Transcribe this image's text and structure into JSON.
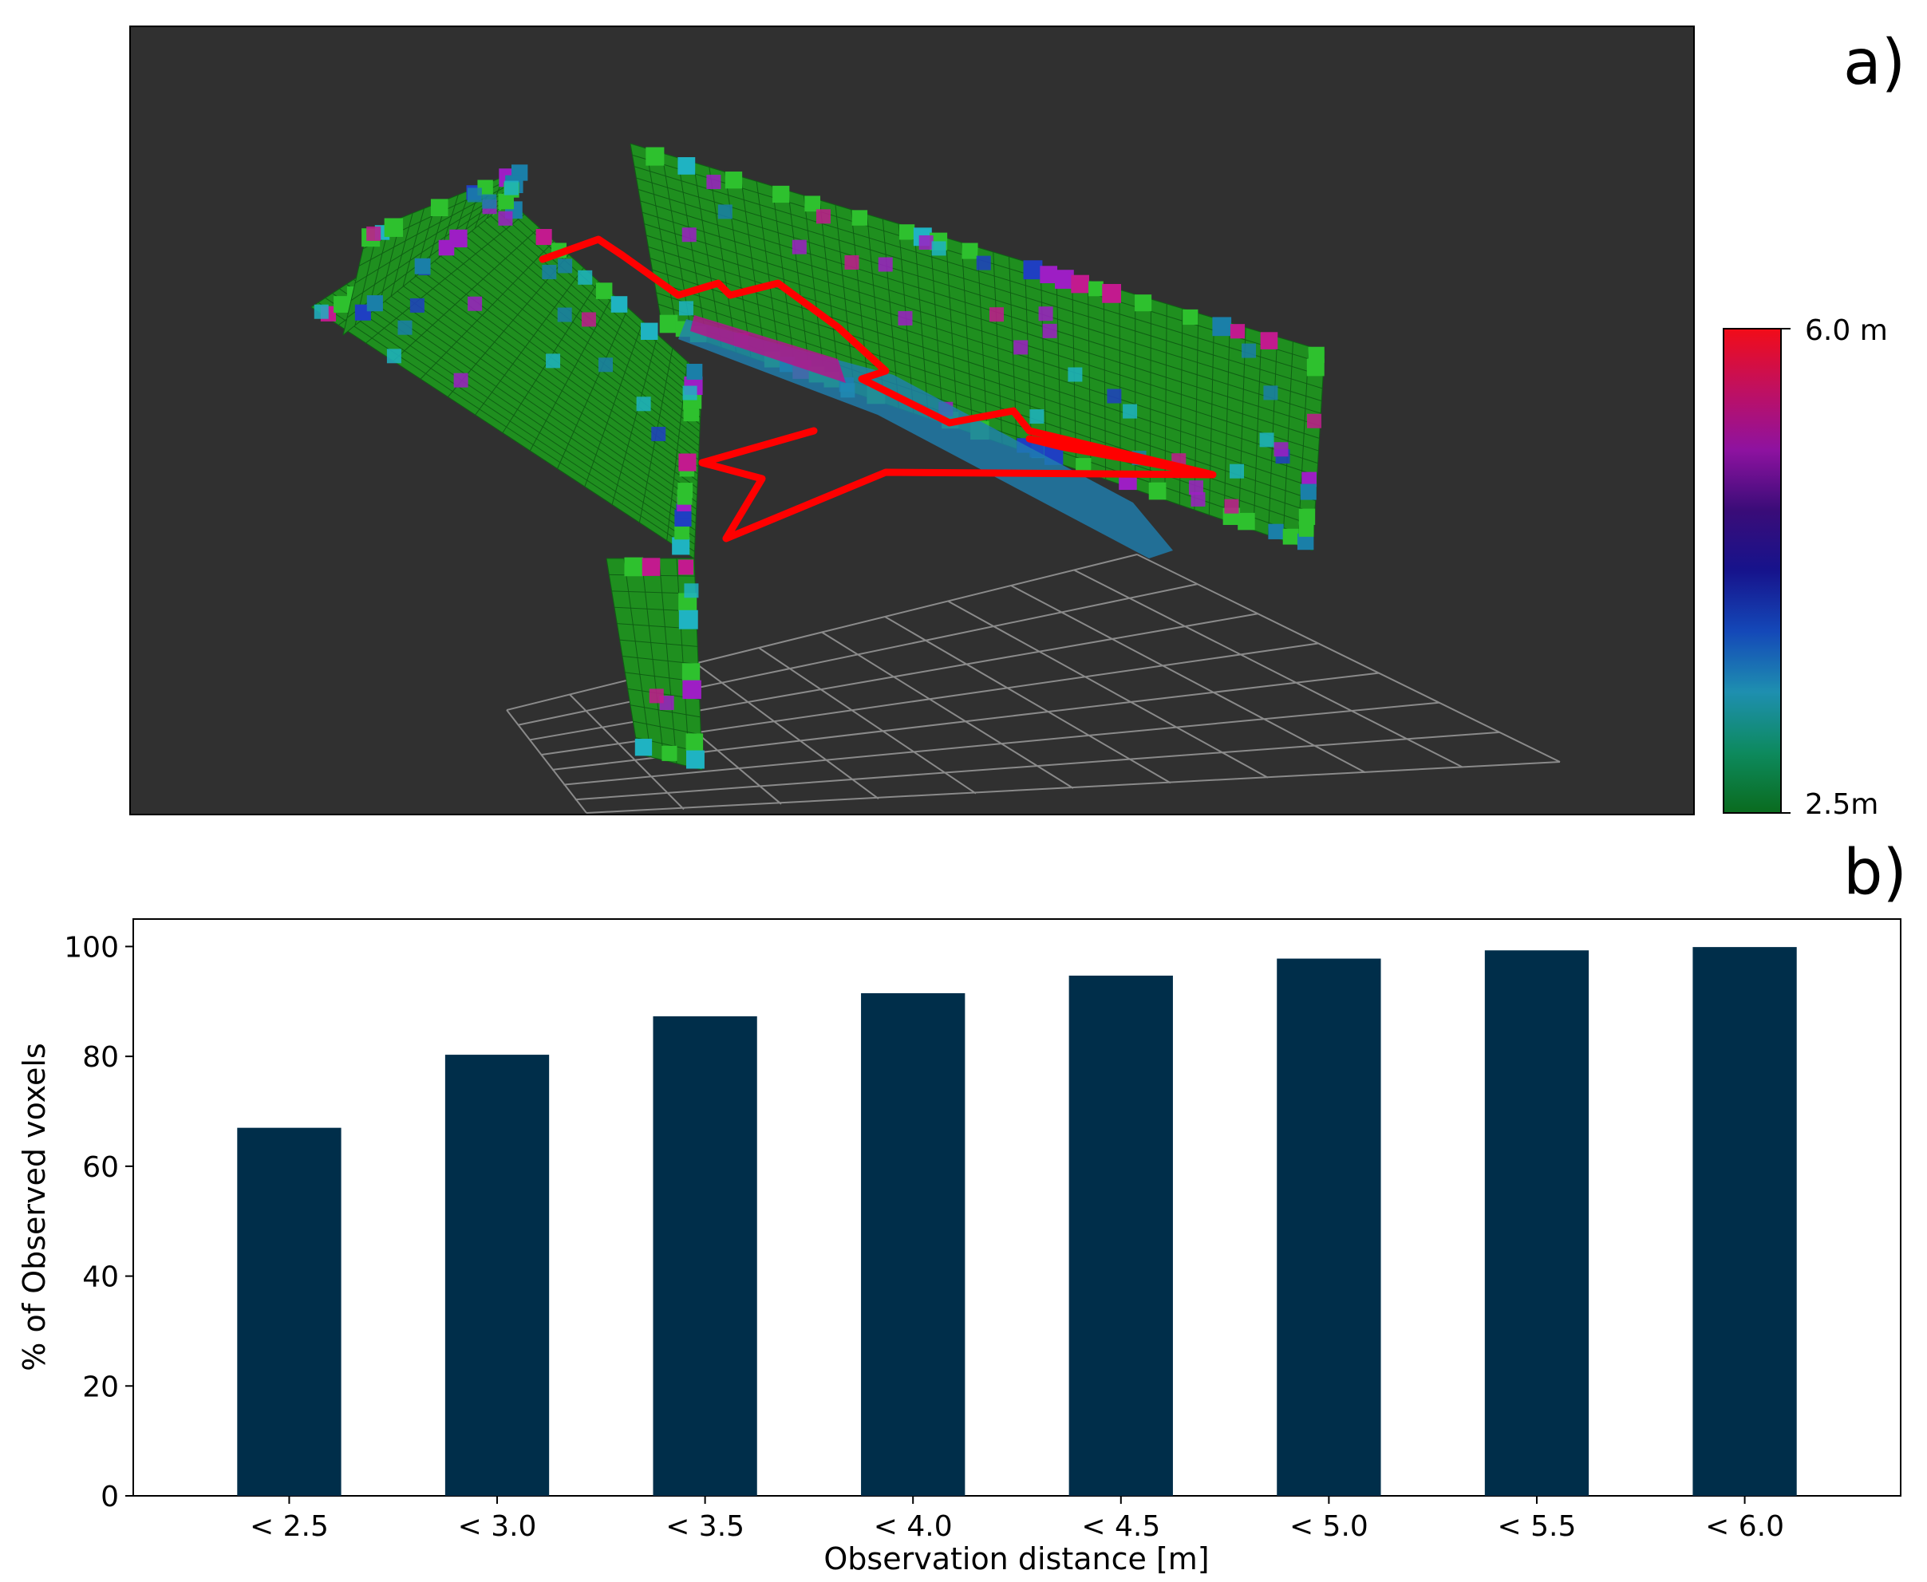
{
  "panel_a": {
    "label": "a)",
    "colorbar": {
      "max_label": "6.0 m",
      "min_label": "2.5m",
      "range": [
        2.5,
        6.0
      ],
      "unit": "m",
      "stops": [
        "#0a6b1e",
        "#0d8a5e",
        "#1e8fb0",
        "#1448b8",
        "#16138c",
        "#3a0c78",
        "#8e12a0",
        "#c01060",
        "#f20c18"
      ]
    },
    "render": {
      "background": "#303030",
      "trajectory_color": "#ff0000",
      "wall_color": "#1f8f1f",
      "wall_edge_color": "#2ec12e",
      "accent_colors": [
        "#1a7fa8",
        "#1f3fc2",
        "#9d1ec4",
        "#c21a8e",
        "#1fb3c2"
      ]
    }
  },
  "panel_b": {
    "label": "b)",
    "bar_color": "#002e4a"
  },
  "chart_data": {
    "type": "bar",
    "categories": [
      "< 2.5",
      "< 3.0",
      "< 3.5",
      "< 4.0",
      "< 4.5",
      "< 5.0",
      "< 5.5",
      "< 6.0"
    ],
    "values": [
      67,
      80.3,
      87.3,
      91.5,
      94.7,
      97.8,
      99.3,
      99.9
    ],
    "xlabel": "Observation distance [m]",
    "ylabel": "% of Observed voxels",
    "ylim": [
      0,
      105
    ],
    "yticks": [
      0,
      20,
      40,
      60,
      80,
      100
    ],
    "grid": false,
    "legend": "none"
  }
}
